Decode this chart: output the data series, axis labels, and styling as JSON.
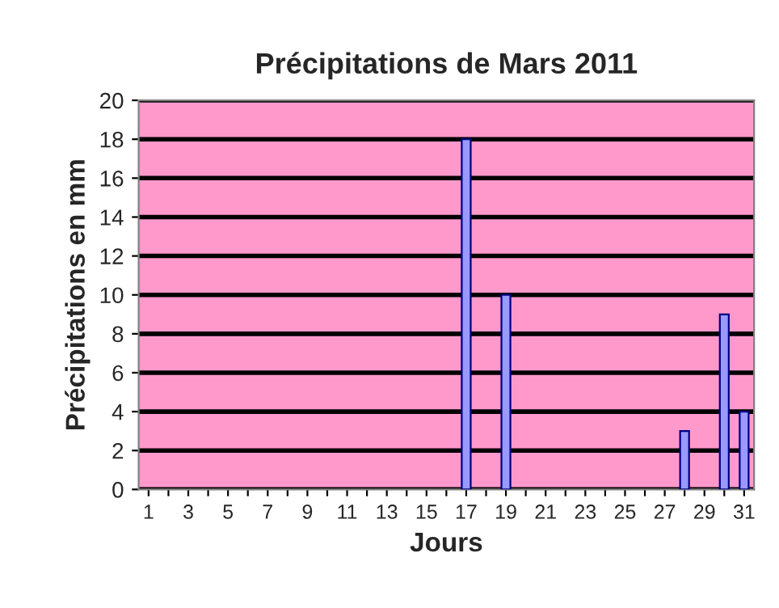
{
  "chart_data": {
    "type": "bar",
    "title": "Précipitations de Mars 2011",
    "xlabel": "Jours",
    "ylabel": "Précipitations en mm",
    "categories": [
      "1",
      null,
      "3",
      null,
      "5",
      null,
      "7",
      null,
      "9",
      null,
      "11",
      null,
      "13",
      null,
      "15",
      null,
      "17",
      null,
      "19",
      null,
      "21",
      null,
      "23",
      null,
      "25",
      null,
      "27",
      null,
      "29",
      null,
      "31"
    ],
    "values": [
      0,
      0,
      0,
      0,
      0,
      0,
      0,
      0,
      0,
      0,
      0,
      0,
      0,
      0,
      0,
      0,
      18,
      0,
      10,
      0,
      0,
      0,
      0,
      0,
      0,
      0,
      0,
      3,
      0,
      9,
      4
    ],
    "color": "#9999ff",
    "ylim": [
      0,
      20
    ],
    "yticks": [
      0,
      2,
      4,
      6,
      8,
      10,
      12,
      14,
      16,
      18,
      20
    ],
    "grid": "y",
    "legend": false
  }
}
